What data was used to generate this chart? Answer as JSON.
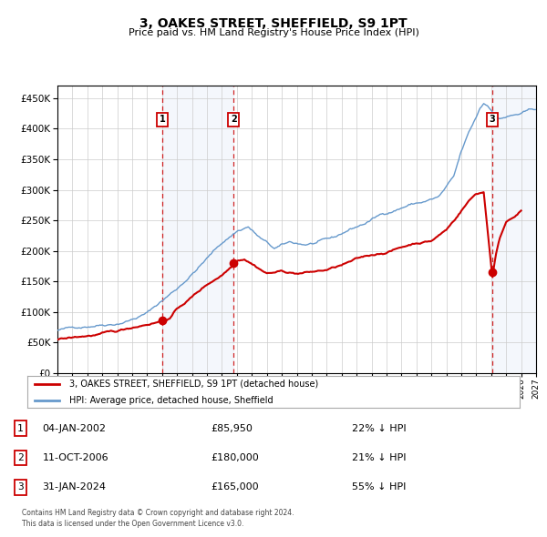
{
  "title": "3, OAKES STREET, SHEFFIELD, S9 1PT",
  "subtitle": "Price paid vs. HM Land Registry's House Price Index (HPI)",
  "legend_line1": "3, OAKES STREET, SHEFFIELD, S9 1PT (detached house)",
  "legend_line2": "HPI: Average price, detached house, Sheffield",
  "footer1": "Contains HM Land Registry data © Crown copyright and database right 2024.",
  "footer2": "This data is licensed under the Open Government Licence v3.0.",
  "sale_color": "#cc0000",
  "hpi_color": "#6699cc",
  "background_color": "#ffffff",
  "grid_color": "#cccccc",
  "yticks": [
    0,
    50000,
    100000,
    150000,
    200000,
    250000,
    300000,
    350000,
    400000,
    450000
  ],
  "sales": [
    {
      "date_dec": 2002.01,
      "price": 85950,
      "label": "1"
    },
    {
      "date_dec": 2006.78,
      "price": 180000,
      "label": "2"
    },
    {
      "date_dec": 2024.08,
      "price": 165000,
      "label": "3"
    }
  ],
  "hpi_anchors_x": [
    1995.0,
    1996.0,
    1997.0,
    1998.0,
    1999.0,
    2000.0,
    2001.0,
    2002.0,
    2003.0,
    2004.0,
    2005.0,
    2006.0,
    2007.0,
    2007.75,
    2008.5,
    2009.5,
    2010.5,
    2011.5,
    2012.5,
    2013.5,
    2014.5,
    2015.5,
    2016.5,
    2017.5,
    2018.5,
    2019.5,
    2020.5,
    2021.5,
    2022.0,
    2022.5,
    2023.0,
    2023.25,
    2023.5,
    2023.75,
    2024.0,
    2024.25,
    2024.5,
    2025.0,
    2026.0,
    2027.0
  ],
  "hpi_anchors_y": [
    70000,
    73000,
    78000,
    83000,
    87000,
    95000,
    105000,
    125000,
    145000,
    170000,
    195000,
    220000,
    240000,
    248000,
    230000,
    210000,
    218000,
    215000,
    218000,
    222000,
    235000,
    245000,
    258000,
    268000,
    278000,
    283000,
    290000,
    320000,
    360000,
    390000,
    415000,
    430000,
    438000,
    435000,
    430000,
    422000,
    415000,
    418000,
    422000,
    428000
  ],
  "prop_anchors_x": [
    1995.0,
    1996.0,
    1997.0,
    1998.0,
    1999.0,
    2000.0,
    2001.0,
    2002.01,
    2002.5,
    2003.0,
    2004.0,
    2005.0,
    2006.0,
    2006.78,
    2007.0,
    2007.5,
    2008.0,
    2009.0,
    2010.0,
    2011.0,
    2012.0,
    2013.0,
    2014.0,
    2015.0,
    2016.0,
    2017.0,
    2018.0,
    2019.0,
    2020.0,
    2021.0,
    2021.5,
    2022.0,
    2022.5,
    2023.0,
    2023.5,
    2024.08,
    2024.3,
    2024.6,
    2025.0,
    2026.0
  ],
  "prop_anchors_y": [
    55000,
    57000,
    60000,
    63000,
    65000,
    72000,
    79000,
    85950,
    90000,
    105000,
    125000,
    145000,
    162000,
    180000,
    188000,
    192000,
    185000,
    170000,
    173000,
    170000,
    172000,
    175000,
    182000,
    190000,
    196000,
    202000,
    210000,
    218000,
    222000,
    240000,
    255000,
    272000,
    288000,
    300000,
    303000,
    165000,
    200000,
    230000,
    255000,
    275000
  ],
  "table_rows": [
    {
      "num": "1",
      "date": "04-JAN-2002",
      "price": "£85,950",
      "pct": "22% ↓ HPI"
    },
    {
      "num": "2",
      "date": "11-OCT-2006",
      "price": "£180,000",
      "pct": "21% ↓ HPI"
    },
    {
      "num": "3",
      "date": "31-JAN-2024",
      "price": "£165,000",
      "pct": "55% ↓ HPI"
    }
  ]
}
